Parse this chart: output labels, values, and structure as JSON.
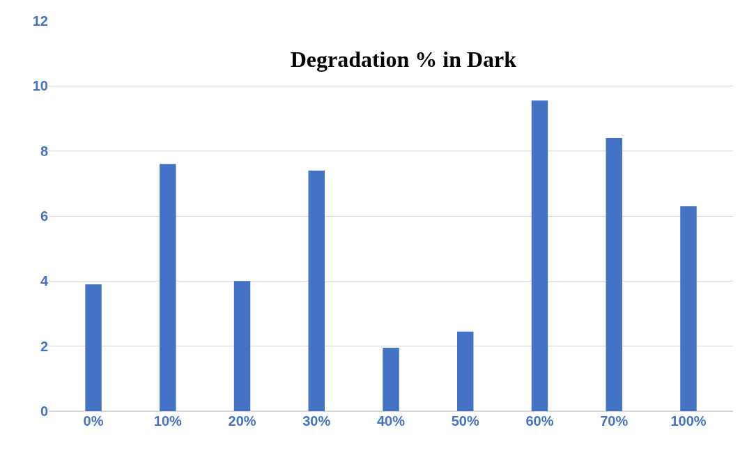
{
  "chart_data": {
    "type": "bar",
    "title": "Degradation % in Dark",
    "categories": [
      "0%",
      "10%",
      "20%",
      "30%",
      "40%",
      "50%",
      "60%",
      "70%",
      "100%"
    ],
    "values": [
      3.9,
      7.6,
      4.0,
      7.4,
      1.95,
      2.45,
      9.55,
      8.4,
      6.3
    ],
    "color": "#4472c4",
    "ylim": [
      0,
      12
    ],
    "yticks": [
      0,
      2,
      4,
      6,
      8,
      10,
      12
    ],
    "grid": "y"
  }
}
